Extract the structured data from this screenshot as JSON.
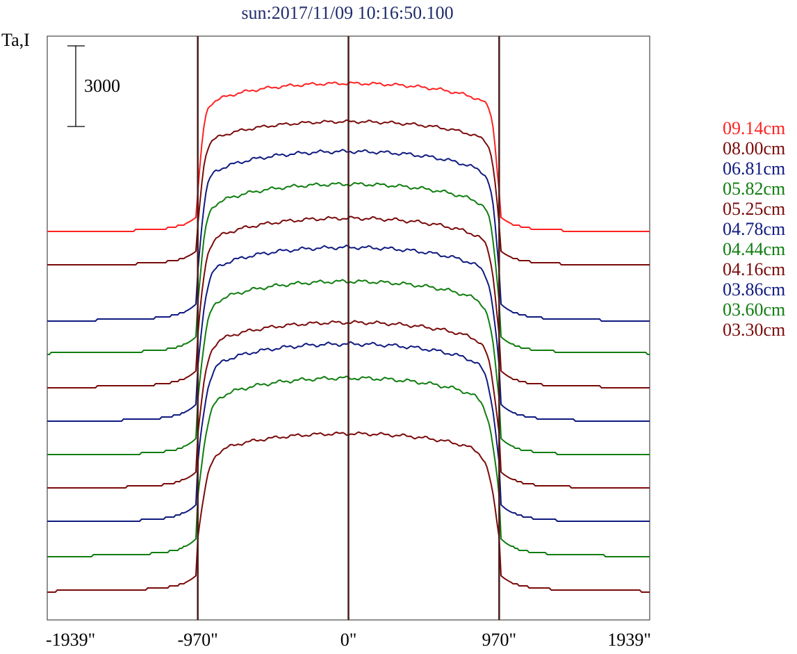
{
  "chart_data": {
    "type": "line",
    "title": "sun:2017/11/09 10:16:50.100",
    "ylabel": "Ta,I",
    "scale_bar_label": "3000",
    "scale_bar_value": 3000,
    "x_ticks": [
      {
        "value": -1939,
        "label": "-1939\""
      },
      {
        "value": -970,
        "label": "-970\""
      },
      {
        "value": 0,
        "label": "0\""
      },
      {
        "value": 970,
        "label": "970\""
      },
      {
        "value": 1939,
        "label": "1939\""
      }
    ],
    "xlim": [
      -1939,
      1939
    ],
    "vertical_lines": [
      -970,
      0,
      970
    ],
    "grid": false,
    "legend_position": "right",
    "series": [
      {
        "name": "09.14cm",
        "color": "#ff2020"
      },
      {
        "name": "08.00cm",
        "color": "#7a0a0a"
      },
      {
        "name": "06.81cm",
        "color": "#0f1a80"
      },
      {
        "name": "05.82cm",
        "color": "#0f7d0f"
      },
      {
        "name": "05.25cm",
        "color": "#7a0a0a"
      },
      {
        "name": "04.78cm",
        "color": "#0f1a80"
      },
      {
        "name": "04.44cm",
        "color": "#0f7d0f"
      },
      {
        "name": "04.16cm",
        "color": "#7a0a0a"
      },
      {
        "name": "03.86cm",
        "color": "#0f1a80"
      },
      {
        "name": "03.60cm",
        "color": "#0f7d0f"
      },
      {
        "name": "03.30cm",
        "color": "#7a0a0a"
      }
    ]
  }
}
